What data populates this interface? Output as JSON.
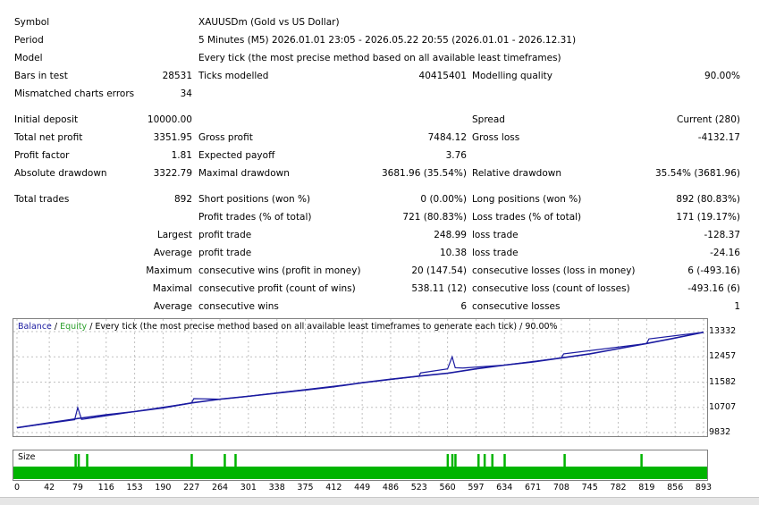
{
  "header": {
    "symbol_label": "Symbol",
    "symbol_value": "XAUUSDm (Gold vs US Dollar)",
    "period_label": "Period",
    "period_value": "5 Minutes (M5) 2026.01.01 23:05 - 2026.05.22 20:55 (2026.01.01 - 2026.12.31)",
    "model_label": "Model",
    "model_value": "Every tick (the most precise method based on all available least timeframes)",
    "bars_label": "Bars in test",
    "bars_value": "28531",
    "ticks_label": "Ticks modelled",
    "ticks_value": "40415401",
    "quality_label": "Modelling quality",
    "quality_value": "90.00%",
    "mismatch_label": "Mismatched charts errors",
    "mismatch_value": "34"
  },
  "stats": {
    "initial_deposit_label": "Initial deposit",
    "initial_deposit_value": "10000.00",
    "spread_label": "Spread",
    "spread_value": "Current (280)",
    "net_profit_label": "Total net profit",
    "net_profit_value": "3351.95",
    "gross_profit_label": "Gross profit",
    "gross_profit_value": "7484.12",
    "gross_loss_label": "Gross loss",
    "gross_loss_value": "-4132.17",
    "profit_factor_label": "Profit factor",
    "profit_factor_value": "1.81",
    "expected_payoff_label": "Expected payoff",
    "expected_payoff_value": "3.76",
    "abs_dd_label": "Absolute drawdown",
    "abs_dd_value": "3322.79",
    "max_dd_label": "Maximal drawdown",
    "max_dd_value": "3681.96 (35.54%)",
    "rel_dd_label": "Relative drawdown",
    "rel_dd_value": "35.54% (3681.96)",
    "total_trades_label": "Total trades",
    "total_trades_value": "892",
    "short_label": "Short positions (won %)",
    "short_value": "0 (0.00%)",
    "long_label": "Long positions (won %)",
    "long_value": "892 (80.83%)",
    "profit_trades_label": "Profit trades (% of total)",
    "profit_trades_value": "721 (80.83%)",
    "loss_trades_label": "Loss trades (% of total)",
    "loss_trades_value": "171 (19.17%)",
    "largest_label": "Largest",
    "largest_profit_label": "profit trade",
    "largest_profit_value": "248.99",
    "largest_loss_label": "loss trade",
    "largest_loss_value": "-128.37",
    "average_label": "Average",
    "average_profit_label": "profit trade",
    "average_profit_value": "10.38",
    "average_loss_label": "loss trade",
    "average_loss_value": "-24.16",
    "maximum_label": "Maximum",
    "max_cons_wins_label": "consecutive wins (profit in money)",
    "max_cons_wins_value": "20 (147.54)",
    "max_cons_losses_label": "consecutive losses (loss in money)",
    "max_cons_losses_value": "6 (-493.16)",
    "maximal_label": "Maximal",
    "maximal_cons_profit_label": "consecutive profit (count of wins)",
    "maximal_cons_profit_value": "538.11 (12)",
    "maximal_cons_loss_label": "consecutive loss (count of losses)",
    "maximal_cons_loss_value": "-493.16 (6)",
    "average2_label": "Average",
    "avg_cons_wins_label": "consecutive wins",
    "avg_cons_wins_value": "6",
    "avg_cons_losses_label": "consecutive losses",
    "avg_cons_losses_value": "1"
  },
  "chart_legend": {
    "balance": "Balance",
    "sep1": " / ",
    "equity": "Equity",
    "rest": " / Every tick (the most precise method based on all available least timeframes to generate each tick) / 90.00%"
  },
  "size_label": "Size",
  "colors": {
    "balance": "#1a1aa0",
    "equity": "#2ca02c",
    "size_bars": "#00b400",
    "grid": "#c0c0c0"
  },
  "chart_data": {
    "type": "line",
    "y_ticks": [
      "13332",
      "12457",
      "11582",
      "10707",
      "9832"
    ],
    "ylim": [
      9832,
      13332
    ],
    "x_ticks": [
      "0",
      "42",
      "79",
      "116",
      "153",
      "190",
      "227",
      "264",
      "301",
      "338",
      "375",
      "412",
      "449",
      "486",
      "523",
      "560",
      "597",
      "634",
      "671",
      "708",
      "745",
      "782",
      "819",
      "856",
      "893"
    ],
    "xlim": [
      0,
      893
    ],
    "series": [
      {
        "name": "Balance",
        "x": [
          0,
          42,
          79,
          116,
          153,
          190,
          227,
          264,
          301,
          338,
          375,
          412,
          449,
          486,
          523,
          560,
          597,
          634,
          671,
          708,
          745,
          782,
          819,
          856,
          893
        ],
        "values": [
          10000,
          10170,
          10320,
          10450,
          10560,
          10690,
          10860,
          10990,
          11090,
          11200,
          11310,
          11420,
          11560,
          11680,
          11790,
          11890,
          12040,
          12170,
          12280,
          12420,
          12560,
          12740,
          12920,
          13110,
          13310
        ]
      },
      {
        "name": "Equity",
        "x": [
          0,
          75,
          79,
          84,
          95,
          227,
          230,
          264,
          301,
          523,
          525,
          560,
          566,
          570,
          580,
          634,
          708,
          711,
          819,
          822,
          893
        ],
        "values": [
          10000,
          10280,
          10700,
          10290,
          10330,
          10860,
          11010,
          10990,
          11090,
          11790,
          11900,
          12040,
          12460,
          12080,
          12070,
          12170,
          12420,
          12560,
          12920,
          13080,
          13310
        ]
      }
    ],
    "size_bars_x": [
      76,
      80,
      91,
      227,
      270,
      284,
      560,
      566,
      570,
      600,
      608,
      618,
      634,
      712,
      812
    ]
  }
}
